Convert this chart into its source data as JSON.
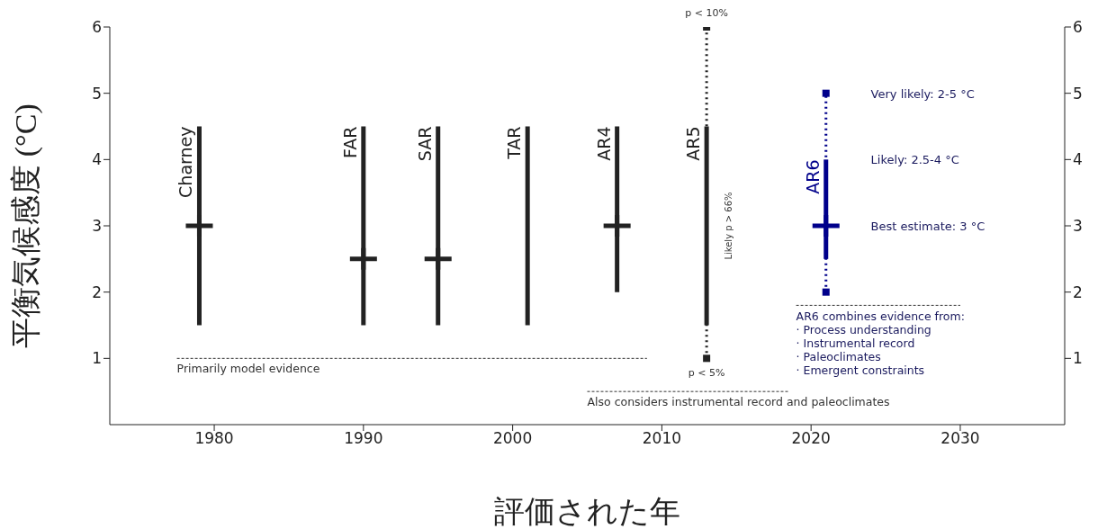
{
  "chart_data": {
    "type": "line",
    "xlabel": "評価された年",
    "ylabel": "平衡気候感度 (°C)",
    "xlim": [
      1973,
      2037
    ],
    "xticks": [
      1980,
      1990,
      2000,
      2010,
      2020,
      2030
    ],
    "ylim": [
      0,
      6
    ],
    "yticks": [
      1,
      2,
      3,
      4,
      5,
      6
    ],
    "y2lim": [
      0,
      6
    ],
    "y2ticks": [
      1,
      2,
      3,
      4,
      5,
      6
    ],
    "series": [
      {
        "color": "#222222",
        "x": [
          2013,
          2013
        ],
        "values": [
          1,
          6
        ],
        "line_style": "dotted"
      },
      {
        "color": "#00008b",
        "x": [
          2021,
          2021
        ],
        "values": [
          2,
          5
        ],
        "line_style": "dotted"
      },
      {
        "name": "Charney",
        "color": "#222222",
        "x": [
          1979,
          1979
        ],
        "values": [
          1.5,
          4.5
        ]
      },
      {
        "name": "FAR",
        "color": "#222222",
        "x": [
          1990,
          1990
        ],
        "values": [
          1.5,
          4.5
        ]
      },
      {
        "name": "SAR",
        "color": "#222222",
        "x": [
          1995,
          1995
        ],
        "values": [
          1.5,
          4.5
        ]
      },
      {
        "name": "TAR",
        "color": "#222222",
        "x": [
          2001,
          2001
        ],
        "values": [
          1.5,
          4.5
        ]
      },
      {
        "name": "AR4",
        "color": "#222222",
        "x": [
          2007,
          2007
        ],
        "values": [
          2,
          4.5
        ]
      },
      {
        "name": "AR5",
        "color": "#222222",
        "x": [
          2013,
          2013
        ],
        "values": [
          1.5,
          4.5
        ]
      },
      {
        "name": "AR6",
        "color": "#00008b",
        "x": [
          2021,
          2021
        ],
        "values": [
          2.5,
          4
        ]
      },
      {
        "type": "scatter",
        "x": [
          1979,
          1990,
          1995,
          2007,
          2021
        ],
        "values": [
          3,
          2.5,
          2.5,
          3,
          3
        ],
        "colors": [
          "#222222",
          "#222222",
          "#222222",
          "#222222",
          "#00008b"
        ],
        "marker": "cross"
      },
      {
        "type": "scatter",
        "x": [
          2013,
          2013,
          2021,
          2021
        ],
        "values": [
          1,
          6,
          2,
          5
        ],
        "colors": [
          "#222222",
          "#222222",
          "#00008b",
          "#00008b"
        ],
        "marker": "square"
      },
      {
        "color": "#333333",
        "x": [
          1977.5,
          2009
        ],
        "values": [
          1,
          1
        ],
        "line_style": "dashed"
      },
      {
        "color": "#333333",
        "x": [
          2005,
          2018.5
        ],
        "values": [
          0.5,
          0.5
        ],
        "line_style": "dashed"
      },
      {
        "color": "#333333",
        "x": [
          2019,
          2030
        ],
        "values": [
          1.8,
          1.8
        ],
        "line_style": "dashed"
      }
    ],
    "annotations": [
      {
        "text": "p < 10%",
        "x": 2013,
        "y": 6
      },
      {
        "text": "p < 5%",
        "x": 2013,
        "y": 1
      },
      "Likely  p > 66%",
      "Very likely: 2-5 °C",
      "Likely: 2.5-4 °C",
      "Best estimate: 3 °C",
      {
        "text": "AR6 combines evidence from:\n· Process understanding\n· Instrumental record\n· Paleoclimates\n· Emergent constraints",
        "x": 2019,
        "y": 1.8
      },
      {
        "text": "Primarily model evidence",
        "x": 1977.5,
        "y": 1
      },
      {
        "text": "Also considers instrumental record and paleoclimates",
        "x": 2005,
        "y": 0.5
      }
    ]
  }
}
